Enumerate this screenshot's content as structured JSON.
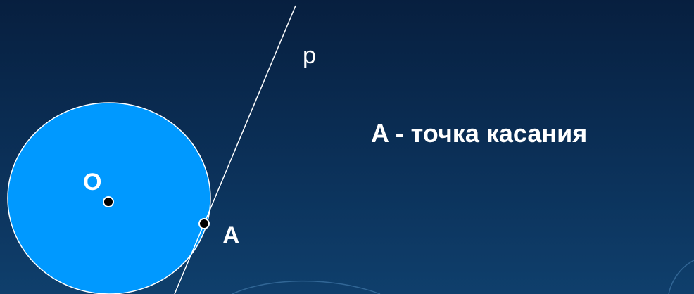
{
  "diagram": {
    "colors": {
      "background_top": "#071f3f",
      "background_bottom": "#0f3f6c",
      "circle_fill": "#0099ff",
      "lines": "#ffffff",
      "points": "#000000"
    },
    "labels": {
      "tangent_line": "p",
      "center_point": "O",
      "tangent_point": "A"
    },
    "caption": "A - точка касания"
  }
}
